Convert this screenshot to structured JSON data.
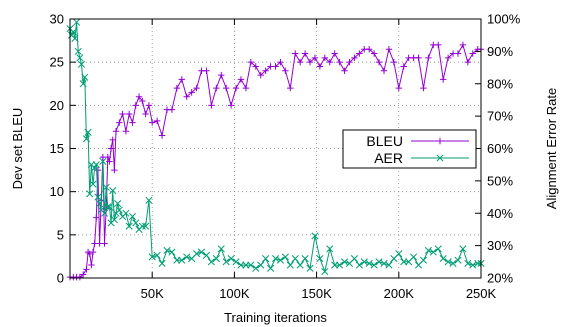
{
  "chart_data": {
    "type": "line",
    "title": "",
    "xlabel": "Training iterations",
    "ylabel": "Dev set BLEU",
    "y2label": "Alignment Error Rate",
    "xlim": [
      0,
      250000
    ],
    "ylim": [
      0,
      30
    ],
    "y2lim": [
      20,
      100
    ],
    "x_ticks": [
      50000,
      100000,
      150000,
      200000,
      250000
    ],
    "x_tick_labels": [
      "50K",
      "100K",
      "150K",
      "200K",
      "250K"
    ],
    "y_ticks": [
      0,
      5,
      10,
      15,
      20,
      25,
      30
    ],
    "y_tick_labels": [
      "0",
      "5",
      "10",
      "15",
      "20",
      "25",
      "30"
    ],
    "y2_ticks": [
      20,
      30,
      40,
      50,
      60,
      70,
      80,
      90,
      100
    ],
    "y2_tick_labels": [
      "20%",
      "30%",
      "40%",
      "50%",
      "60%",
      "70%",
      "80%",
      "90%",
      "100%"
    ],
    "grid": "dotted",
    "legend_position": "right",
    "series": [
      {
        "name": "BLEU",
        "axis": "left",
        "color": "#9400d3",
        "marker": "plus",
        "x": [
          0,
          2000,
          4000,
          6000,
          8000,
          10000,
          11000,
          12000,
          13000,
          14000,
          15000,
          16000,
          17000,
          18000,
          19000,
          20000,
          21000,
          22000,
          23000,
          24000,
          25000,
          26000,
          27000,
          28000,
          30000,
          32000,
          34000,
          36000,
          38000,
          40000,
          42000,
          44000,
          46000,
          48000,
          50000,
          53000,
          56000,
          59000,
          62000,
          65000,
          68000,
          71000,
          74000,
          77000,
          80000,
          83000,
          86000,
          89000,
          92000,
          95000,
          98000,
          101000,
          104000,
          107000,
          110000,
          113000,
          116000,
          119000,
          122000,
          125000,
          128000,
          131000,
          134000,
          137000,
          140000,
          143000,
          146000,
          149000,
          152000,
          155000,
          158000,
          161000,
          164000,
          167000,
          170000,
          173000,
          176000,
          179000,
          182000,
          185000,
          188000,
          191000,
          194000,
          197000,
          200000,
          203000,
          206000,
          209000,
          212000,
          215000,
          218000,
          221000,
          224000,
          227000,
          230000,
          233000,
          236000,
          239000,
          242000,
          245000,
          248000,
          250000
        ],
        "y": [
          0.1,
          0.1,
          0.1,
          0.1,
          0.4,
          1,
          3,
          2.8,
          1.5,
          3,
          4,
          7,
          12.5,
          4,
          9,
          14,
          4,
          8,
          14,
          13.5,
          15,
          16,
          12.5,
          17,
          18,
          19,
          17,
          19,
          18,
          20,
          21,
          20.5,
          19,
          20,
          18,
          18.2,
          16.5,
          19.5,
          19.5,
          22,
          23,
          21,
          21.5,
          22,
          24,
          24,
          20,
          22,
          23.5,
          22,
          20,
          22,
          23,
          22,
          25,
          24.5,
          23.5,
          24,
          24.5,
          24.5,
          25,
          24,
          22,
          26,
          25,
          26,
          25,
          25.5,
          24.5,
          25.5,
          25,
          26,
          25,
          24,
          25,
          25.5,
          26,
          26.5,
          26.5,
          26,
          25,
          24,
          26.5,
          25,
          22,
          24.5,
          25.5,
          25.5,
          25.5,
          22,
          25.5,
          27,
          27,
          23,
          25.5,
          26,
          26,
          27,
          25,
          26,
          26.5,
          26.5
        ]
      },
      {
        "name": "AER",
        "axis": "right",
        "color": "#009e73",
        "marker": "cross",
        "x": [
          0,
          1000,
          2000,
          3000,
          4000,
          5000,
          6000,
          7000,
          8000,
          9000,
          10000,
          11000,
          12000,
          13000,
          14000,
          15000,
          16000,
          17000,
          18000,
          19000,
          20000,
          21000,
          22000,
          23000,
          24000,
          25000,
          26000,
          27000,
          28000,
          29000,
          30000,
          32000,
          34000,
          36000,
          38000,
          40000,
          42000,
          44000,
          46000,
          48000,
          50000,
          53000,
          56000,
          59000,
          62000,
          65000,
          68000,
          71000,
          74000,
          77000,
          80000,
          83000,
          86000,
          89000,
          92000,
          95000,
          98000,
          101000,
          104000,
          107000,
          110000,
          113000,
          116000,
          119000,
          122000,
          125000,
          128000,
          131000,
          134000,
          137000,
          140000,
          143000,
          146000,
          149000,
          152000,
          155000,
          158000,
          161000,
          164000,
          167000,
          170000,
          173000,
          176000,
          179000,
          182000,
          185000,
          188000,
          191000,
          194000,
          197000,
          200000,
          203000,
          206000,
          209000,
          212000,
          215000,
          218000,
          221000,
          224000,
          227000,
          230000,
          233000,
          236000,
          239000,
          242000,
          245000,
          248000,
          250000
        ],
        "y": [
          97,
          95,
          96,
          94,
          99,
          90,
          88,
          86,
          80,
          82,
          63,
          65,
          46,
          55,
          49,
          54,
          55,
          45,
          43,
          41,
          56,
          40,
          48,
          42,
          42,
          37,
          47,
          38,
          40,
          43,
          41,
          39,
          40,
          36,
          39,
          37,
          35,
          36,
          36,
          44,
          26.5,
          27,
          24.5,
          28.5,
          28,
          25.5,
          25.5,
          26.5,
          26,
          27.5,
          28,
          27,
          25,
          26,
          29,
          25,
          26,
          25,
          24,
          24,
          24,
          23,
          24,
          26,
          23,
          26,
          25.5,
          26.5,
          24,
          26,
          24,
          26,
          23,
          33,
          26,
          22,
          29,
          24,
          24,
          25,
          24.5,
          26,
          24,
          25,
          24.5,
          24,
          25,
          24.5,
          24,
          26,
          27.5,
          25,
          25,
          26.5,
          24,
          25.5,
          28.5,
          28,
          29,
          26,
          25,
          24.5,
          25.5,
          29,
          24.5,
          24,
          24.5,
          24.5
        ]
      }
    ]
  }
}
